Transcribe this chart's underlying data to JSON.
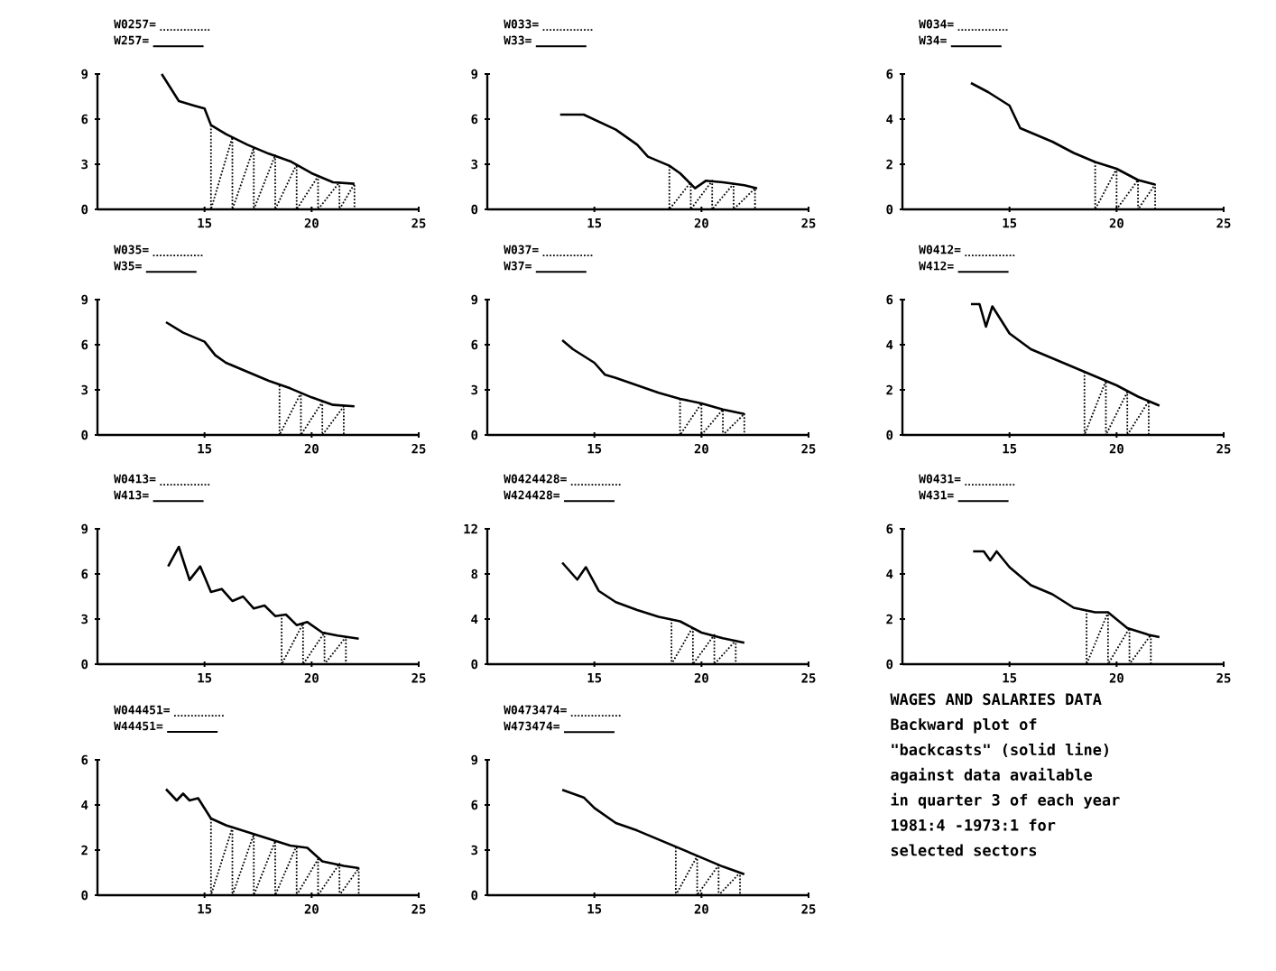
{
  "chart_data": [
    {
      "type": "line",
      "xlim": [
        10,
        25
      ],
      "xticks": [
        15,
        20,
        25
      ],
      "ylim": [
        0,
        9
      ],
      "yticks": [
        0,
        3,
        6,
        9
      ],
      "legend": "top",
      "marker": "none",
      "series": [
        {
          "name": "W0257=",
          "color": "#000000",
          "line_style": "dotted",
          "x": [
            15.3,
            15.3,
            16.3,
            16.3,
            17.3,
            17.3,
            18.3,
            18.3,
            19.3,
            19.3,
            20.3,
            20.3,
            21.3,
            21.3,
            22,
            22
          ],
          "values": [
            5.6,
            0,
            4.8,
            0,
            4.1,
            0,
            3.6,
            0,
            3.0,
            0,
            2.2,
            0,
            1.8,
            0,
            1.7,
            0
          ]
        },
        {
          "name": "W257=",
          "color": "#000000",
          "line_style": "solid",
          "x": [
            13,
            13.8,
            14.5,
            15,
            15.3,
            16,
            17,
            18,
            19,
            20,
            21,
            22
          ],
          "values": [
            9,
            7.2,
            6.9,
            6.7,
            5.6,
            5.0,
            4.3,
            3.7,
            3.2,
            2.4,
            1.8,
            1.7
          ]
        }
      ]
    },
    {
      "type": "line",
      "xlim": [
        10,
        25
      ],
      "xticks": [
        15,
        20,
        25
      ],
      "ylim": [
        0,
        9
      ],
      "yticks": [
        0,
        3,
        6,
        9
      ],
      "legend": "top",
      "marker": "none",
      "series": [
        {
          "name": "W033=",
          "color": "#000000",
          "line_style": "dotted",
          "x": [
            18.5,
            18.5,
            19.5,
            19.5,
            20.5,
            20.5,
            21.5,
            21.5,
            22.5,
            22.5
          ],
          "values": [
            2.9,
            0,
            1.8,
            0,
            1.9,
            0,
            1.7,
            0,
            1.4,
            0
          ]
        },
        {
          "name": "W33=",
          "color": "#000000",
          "line_style": "solid",
          "x": [
            13.4,
            14.5,
            16,
            17,
            17.5,
            18.5,
            19,
            19.7,
            20.2,
            21,
            22,
            22.6
          ],
          "values": [
            6.3,
            6.3,
            5.3,
            4.3,
            3.5,
            2.9,
            2.4,
            1.4,
            1.9,
            1.8,
            1.6,
            1.4
          ]
        }
      ]
    },
    {
      "type": "line",
      "xlim": [
        10,
        25
      ],
      "xticks": [
        15,
        20,
        25
      ],
      "ylim": [
        0,
        6
      ],
      "yticks": [
        0,
        2,
        4,
        6
      ],
      "legend": "top",
      "marker": "none",
      "series": [
        {
          "name": "W034=",
          "color": "#000000",
          "line_style": "dotted",
          "x": [
            19,
            19,
            20,
            20,
            21,
            21,
            21.8,
            21.8
          ],
          "values": [
            2.1,
            0,
            1.8,
            0,
            1.3,
            0,
            1.1,
            0
          ]
        },
        {
          "name": "W34=",
          "color": "#000000",
          "line_style": "solid",
          "x": [
            13.2,
            14,
            15,
            15.5,
            16,
            17,
            18,
            19,
            20,
            21,
            21.8
          ],
          "values": [
            5.6,
            5.2,
            4.6,
            3.6,
            3.4,
            3.0,
            2.5,
            2.1,
            1.8,
            1.3,
            1.1
          ]
        }
      ]
    },
    {
      "type": "line",
      "xlim": [
        10,
        25
      ],
      "xticks": [
        15,
        20,
        25
      ],
      "ylim": [
        0,
        9
      ],
      "yticks": [
        0,
        3,
        6,
        9
      ],
      "legend": "top",
      "marker": "none",
      "series": [
        {
          "name": "W035=",
          "color": "#000000",
          "line_style": "dotted",
          "x": [
            18.5,
            18.5,
            19.5,
            19.5,
            20.5,
            20.5,
            21.5,
            21.5
          ],
          "values": [
            3.3,
            0,
            2.8,
            0,
            2.2,
            0,
            1.9,
            0
          ]
        },
        {
          "name": "W35=",
          "color": "#000000",
          "line_style": "solid",
          "x": [
            13.2,
            14,
            15,
            15.5,
            16,
            17,
            18,
            19,
            20,
            21,
            22
          ],
          "values": [
            7.5,
            6.8,
            6.2,
            5.3,
            4.8,
            4.2,
            3.6,
            3.1,
            2.5,
            2.0,
            1.9
          ]
        }
      ]
    },
    {
      "type": "line",
      "xlim": [
        10,
        25
      ],
      "xticks": [
        15,
        20,
        25
      ],
      "ylim": [
        0,
        9
      ],
      "yticks": [
        0,
        3,
        6,
        9
      ],
      "legend": "top",
      "marker": "none",
      "series": [
        {
          "name": "W037=",
          "color": "#000000",
          "line_style": "dotted",
          "x": [
            19,
            19,
            20,
            20,
            21,
            21,
            22,
            22
          ],
          "values": [
            2.4,
            0,
            2.1,
            0,
            1.7,
            0,
            1.4,
            0
          ]
        },
        {
          "name": "W37=",
          "color": "#000000",
          "line_style": "solid",
          "x": [
            13.5,
            14,
            15,
            15.5,
            16,
            17,
            18,
            19,
            20,
            21,
            22
          ],
          "values": [
            6.3,
            5.7,
            4.8,
            4.0,
            3.8,
            3.3,
            2.8,
            2.4,
            2.1,
            1.7,
            1.4
          ]
        }
      ]
    },
    {
      "type": "line",
      "xlim": [
        10,
        25
      ],
      "xticks": [
        15,
        20,
        25
      ],
      "ylim": [
        0,
        6
      ],
      "yticks": [
        0,
        2,
        4,
        6
      ],
      "legend": "top",
      "marker": "none",
      "series": [
        {
          "name": "W0412=",
          "color": "#000000",
          "line_style": "dotted",
          "x": [
            18.5,
            18.5,
            19.5,
            19.5,
            20.5,
            20.5,
            21.5,
            21.5
          ],
          "values": [
            2.8,
            0,
            2.4,
            0,
            1.9,
            0,
            1.5,
            0
          ]
        },
        {
          "name": "W412=",
          "color": "#000000",
          "line_style": "solid",
          "x": [
            13.2,
            13.6,
            13.9,
            14.2,
            15,
            16,
            17,
            18,
            19,
            20,
            21,
            22
          ],
          "values": [
            5.8,
            5.8,
            4.8,
            5.7,
            4.5,
            3.8,
            3.4,
            3.0,
            2.6,
            2.2,
            1.7,
            1.3
          ]
        }
      ]
    },
    {
      "type": "line",
      "xlim": [
        10,
        25
      ],
      "xticks": [
        15,
        20,
        25
      ],
      "ylim": [
        0,
        9
      ],
      "yticks": [
        0,
        3,
        6,
        9
      ],
      "legend": "top",
      "marker": "none",
      "series": [
        {
          "name": "W0413=",
          "color": "#000000",
          "line_style": "dotted",
          "x": [
            18.6,
            18.6,
            19.6,
            19.6,
            20.6,
            20.6,
            21.6,
            21.6
          ],
          "values": [
            3.3,
            0,
            2.7,
            0,
            2.1,
            0,
            1.8,
            0
          ]
        },
        {
          "name": "W413=",
          "color": "#000000",
          "line_style": "solid",
          "x": [
            13.3,
            13.8,
            14.3,
            14.8,
            15.3,
            15.8,
            16.3,
            16.8,
            17.3,
            17.8,
            18.3,
            18.8,
            19.3,
            19.8,
            20.5,
            21.2,
            22.2
          ],
          "values": [
            6.5,
            7.8,
            5.6,
            6.5,
            4.8,
            5.0,
            4.2,
            4.5,
            3.7,
            3.9,
            3.2,
            3.3,
            2.6,
            2.8,
            2.1,
            1.9,
            1.7
          ]
        }
      ]
    },
    {
      "type": "line",
      "xlim": [
        10,
        25
      ],
      "xticks": [
        15,
        20,
        25
      ],
      "ylim": [
        0,
        12
      ],
      "yticks": [
        0,
        4,
        8,
        12
      ],
      "legend": "top",
      "marker": "none",
      "series": [
        {
          "name": "W0424428=",
          "color": "#000000",
          "line_style": "dotted",
          "x": [
            18.6,
            18.6,
            19.6,
            19.6,
            20.6,
            20.6,
            21.6,
            21.6
          ],
          "values": [
            4.0,
            0,
            3.3,
            0,
            2.6,
            0,
            2.1,
            0
          ]
        },
        {
          "name": "W424428=",
          "color": "#000000",
          "line_style": "solid",
          "x": [
            13.5,
            14.2,
            14.6,
            15.2,
            16,
            17,
            18,
            19,
            20,
            21,
            22
          ],
          "values": [
            9,
            7.5,
            8.6,
            6.5,
            5.5,
            4.8,
            4.2,
            3.8,
            2.8,
            2.3,
            1.9
          ]
        }
      ]
    },
    {
      "type": "line",
      "xlim": [
        10,
        25
      ],
      "xticks": [
        15,
        20,
        25
      ],
      "ylim": [
        0,
        6
      ],
      "yticks": [
        0,
        2,
        4,
        6
      ],
      "legend": "top",
      "marker": "none",
      "series": [
        {
          "name": "W0431=",
          "color": "#000000",
          "line_style": "dotted",
          "x": [
            18.6,
            18.6,
            19.6,
            19.6,
            20.6,
            20.6,
            21.6,
            21.6
          ],
          "values": [
            2.4,
            0,
            2.3,
            0,
            1.6,
            0,
            1.3,
            0
          ]
        },
        {
          "name": "W431=",
          "color": "#000000",
          "line_style": "solid",
          "x": [
            13.3,
            13.8,
            14.1,
            14.4,
            15,
            16,
            17,
            18,
            19,
            19.6,
            20.5,
            21.5,
            22
          ],
          "values": [
            5.0,
            5.0,
            4.6,
            5.0,
            4.3,
            3.5,
            3.1,
            2.5,
            2.3,
            2.3,
            1.6,
            1.3,
            1.2
          ]
        }
      ]
    },
    {
      "type": "line",
      "xlim": [
        10,
        25
      ],
      "xticks": [
        15,
        20,
        25
      ],
      "ylim": [
        0,
        6
      ],
      "yticks": [
        0,
        2,
        4,
        6
      ],
      "legend": "top",
      "marker": "none",
      "series": [
        {
          "name": "W044451=",
          "color": "#000000",
          "line_style": "dotted",
          "x": [
            15.3,
            15.3,
            16.3,
            16.3,
            17.3,
            17.3,
            18.3,
            18.3,
            19.3,
            19.3,
            20.3,
            20.3,
            21.3,
            21.3,
            22.2,
            22.2
          ],
          "values": [
            3.4,
            0,
            3.0,
            0,
            2.7,
            0,
            2.4,
            0,
            2.2,
            0,
            1.6,
            0,
            1.4,
            0,
            1.2,
            0
          ]
        },
        {
          "name": "W44451=",
          "color": "#000000",
          "line_style": "solid",
          "x": [
            13.2,
            13.7,
            14,
            14.3,
            14.7,
            15.3,
            16,
            17,
            18,
            19,
            19.8,
            20.5,
            21.5,
            22.2
          ],
          "values": [
            4.7,
            4.2,
            4.5,
            4.2,
            4.3,
            3.4,
            3.1,
            2.8,
            2.5,
            2.2,
            2.1,
            1.5,
            1.3,
            1.2
          ]
        }
      ]
    },
    {
      "type": "line",
      "xlim": [
        10,
        25
      ],
      "xticks": [
        15,
        20,
        25
      ],
      "ylim": [
        0,
        9
      ],
      "yticks": [
        0,
        3,
        6,
        9
      ],
      "legend": "top",
      "marker": "none",
      "series": [
        {
          "name": "W0473474=",
          "color": "#000000",
          "line_style": "dotted",
          "x": [
            18.8,
            18.8,
            19.8,
            19.8,
            20.8,
            20.8,
            21.8,
            21.8
          ],
          "values": [
            3.2,
            0,
            2.6,
            0,
            2.0,
            0,
            1.5,
            0
          ]
        },
        {
          "name": "W473474=",
          "color": "#000000",
          "line_style": "solid",
          "x": [
            13.5,
            14.5,
            15,
            16,
            17,
            18,
            19,
            20,
            21,
            22
          ],
          "values": [
            7.0,
            6.5,
            5.8,
            4.8,
            4.3,
            3.7,
            3.1,
            2.5,
            1.9,
            1.4
          ]
        }
      ]
    },
    {
      "type": "other",
      "title": "WAGES AND SALARIES DATA",
      "annotations": [
        "Backward plot of",
        "\"backcasts\" (solid line)",
        "against data available",
        "in quarter 3 of each year",
        "1981:4 -1973:1 for",
        "selected sectors"
      ]
    }
  ]
}
